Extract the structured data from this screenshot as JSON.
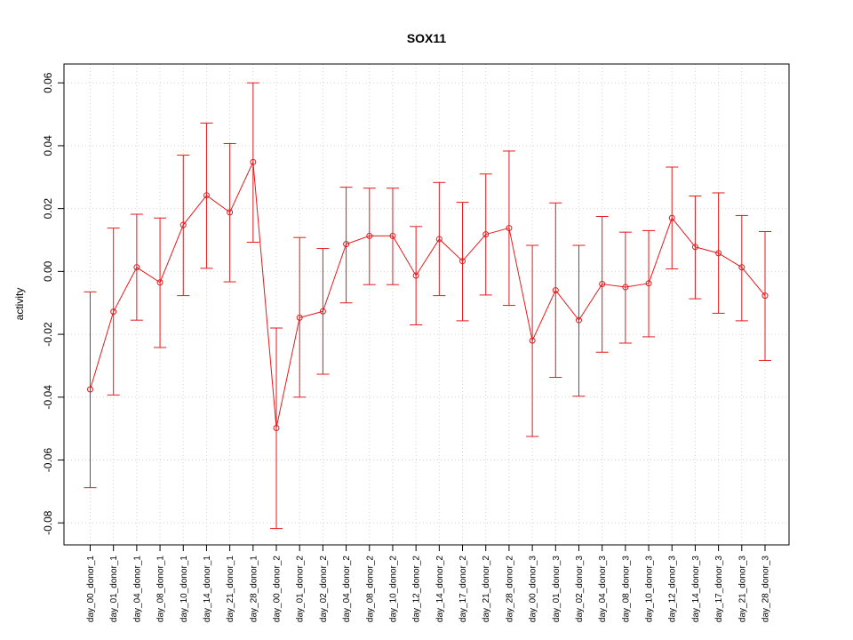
{
  "chart_data": {
    "type": "line",
    "title": "SOX11",
    "xlabel": "",
    "ylabel": "activity",
    "ylim": [
      -0.087,
      0.066
    ],
    "yticks": [
      -0.08,
      -0.06,
      -0.04,
      -0.02,
      0.0,
      0.02,
      0.04,
      0.06
    ],
    "ytick_labels": [
      "-0.08",
      "-0.06",
      "-0.04",
      "-0.02",
      "0.00",
      "0.02",
      "0.04",
      "0.06"
    ],
    "grid": true,
    "color": "#e41a1c",
    "categories": [
      "day_00_donor_1",
      "day_01_donor_1",
      "day_04_donor_1",
      "day_08_donor_1",
      "day_10_donor_1",
      "day_14_donor_1",
      "day_21_donor_1",
      "day_28_donor_1",
      "day_00_donor_2",
      "day_01_donor_2",
      "day_02_donor_2",
      "day_04_donor_2",
      "day_08_donor_2",
      "day_10_donor_2",
      "day_12_donor_2",
      "day_14_donor_2",
      "day_17_donor_2",
      "day_21_donor_2",
      "day_28_donor_2",
      "day_00_donor_3",
      "day_01_donor_3",
      "day_02_donor_3",
      "day_04_donor_3",
      "day_08_donor_3",
      "day_10_donor_3",
      "day_12_donor_3",
      "day_14_donor_3",
      "day_17_donor_3",
      "day_21_donor_3",
      "day_28_donor_3"
    ],
    "values": [
      -0.0375,
      -0.0128,
      0.0013,
      -0.0035,
      0.0148,
      0.0242,
      0.0188,
      0.0348,
      -0.0498,
      -0.0147,
      -0.0127,
      0.0087,
      0.0113,
      0.0113,
      -0.0013,
      0.0103,
      0.0033,
      0.0118,
      0.0138,
      -0.022,
      -0.006,
      -0.0155,
      -0.004,
      -0.005,
      -0.0038,
      0.017,
      0.0078,
      0.0058,
      0.0013,
      -0.0077
    ],
    "upper": [
      -0.0065,
      0.0138,
      0.0182,
      0.017,
      0.037,
      0.0472,
      0.0407,
      0.06,
      -0.018,
      0.0108,
      0.0073,
      0.0268,
      0.0265,
      0.0265,
      0.0143,
      0.0283,
      0.022,
      0.031,
      0.0383,
      0.0083,
      0.0218,
      0.0083,
      0.0175,
      0.0125,
      0.013,
      0.0332,
      0.024,
      0.025,
      0.0178,
      0.0127
    ],
    "lower": [
      -0.0688,
      -0.0393,
      -0.0155,
      -0.0242,
      -0.0077,
      0.001,
      -0.0033,
      0.0093,
      -0.0818,
      -0.04,
      -0.0327,
      -0.01,
      -0.0042,
      -0.0042,
      -0.017,
      -0.0077,
      -0.0157,
      -0.0075,
      -0.0108,
      -0.0525,
      -0.0337,
      -0.0397,
      -0.0257,
      -0.0228,
      -0.0208,
      0.0008,
      -0.0087,
      -0.0133,
      -0.0157,
      -0.0283
    ]
  }
}
